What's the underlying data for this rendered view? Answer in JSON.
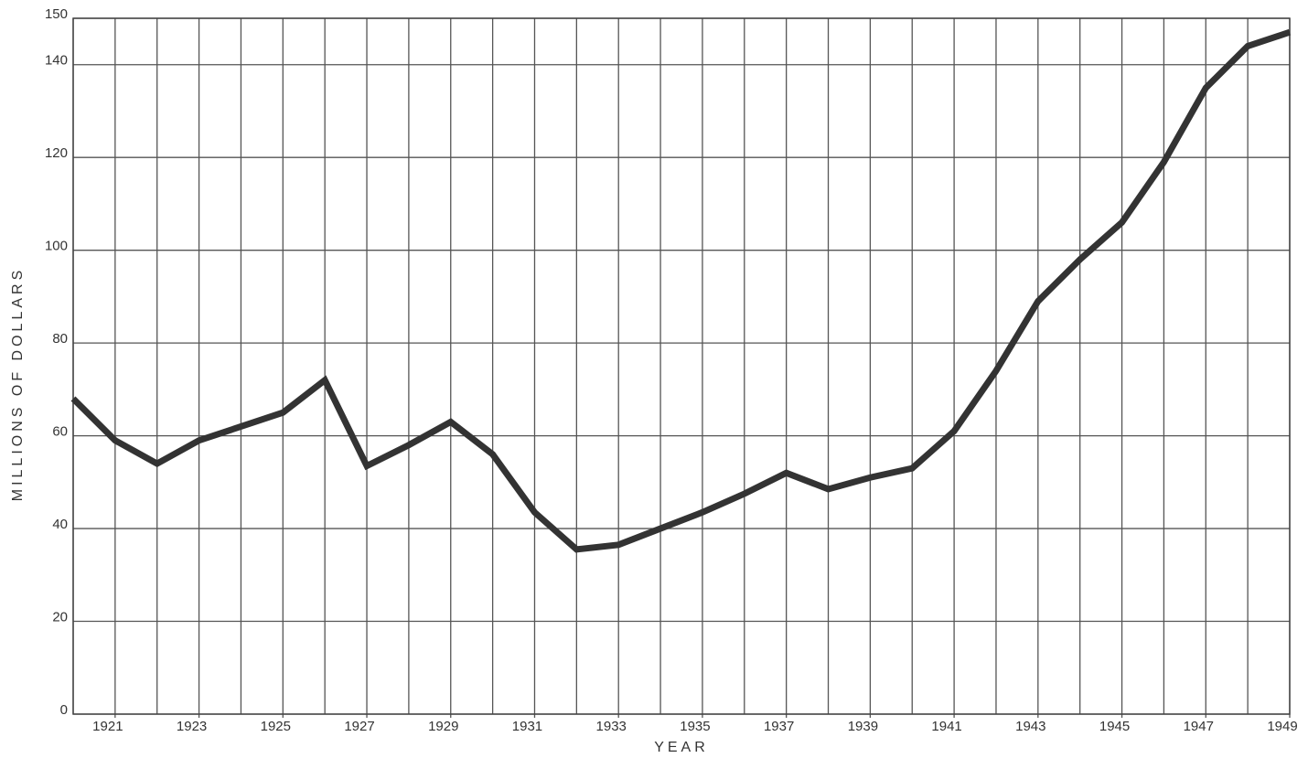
{
  "chart_data": {
    "type": "line",
    "x_label": "YEAR",
    "y_label": "MILLIONS OF DOLLARS",
    "x": [
      1920,
      1921,
      1922,
      1923,
      1924,
      1925,
      1926,
      1927,
      1928,
      1929,
      1930,
      1931,
      1932,
      1933,
      1934,
      1935,
      1936,
      1937,
      1938,
      1939,
      1940,
      1941,
      1942,
      1943,
      1944,
      1945,
      1946,
      1947,
      1948,
      1949
    ],
    "series": [
      {
        "color": "#333333",
        "values": [
          68,
          59,
          54,
          59,
          62,
          65,
          72,
          53.5,
          58,
          63,
          56,
          43.5,
          35.5,
          36.5,
          40,
          43.5,
          47.5,
          52,
          48.5,
          51,
          53,
          61,
          74,
          89,
          98,
          106,
          119,
          135,
          144,
          147
        ]
      }
    ],
    "xlim": [
      1920,
      1949
    ],
    "xticks": [
      1921,
      1923,
      1925,
      1927,
      1929,
      1931,
      1933,
      1935,
      1937,
      1939,
      1941,
      1943,
      1945,
      1947,
      1949
    ],
    "ylim": [
      0,
      150
    ],
    "yticks": [
      0,
      20,
      40,
      60,
      80,
      100,
      120,
      140,
      150
    ],
    "grid": true
  }
}
